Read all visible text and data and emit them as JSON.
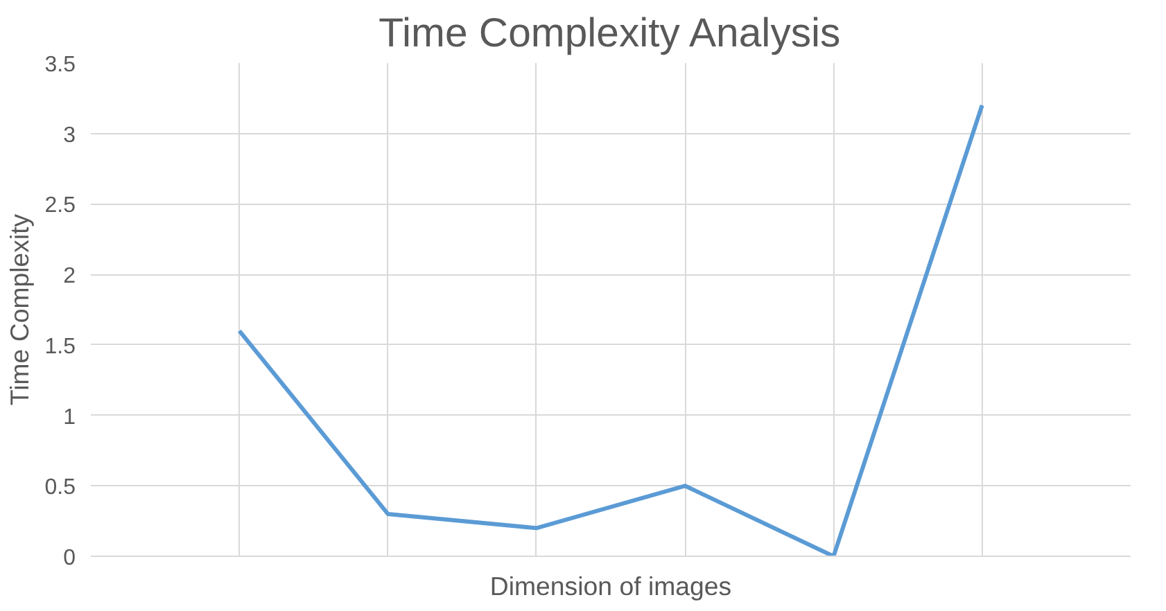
{
  "chart_data": {
    "type": "line",
    "title": "Time Complexity Analysis",
    "xlabel": "Dimension of images",
    "ylabel": "Time Complexity",
    "categories": [
      null,
      null,
      null,
      null,
      null,
      null
    ],
    "series": [
      {
        "color": "#5b9bd5",
        "values": [
          1.6,
          0.3,
          0.2,
          0.5,
          0.0,
          3.2
        ]
      }
    ],
    "ylim": [
      0,
      3.5
    ],
    "yticks": [
      0,
      0.5,
      1,
      1.5,
      2,
      2.5,
      3,
      3.5
    ],
    "grid": true,
    "marker": "none",
    "line_style": "solid"
  }
}
